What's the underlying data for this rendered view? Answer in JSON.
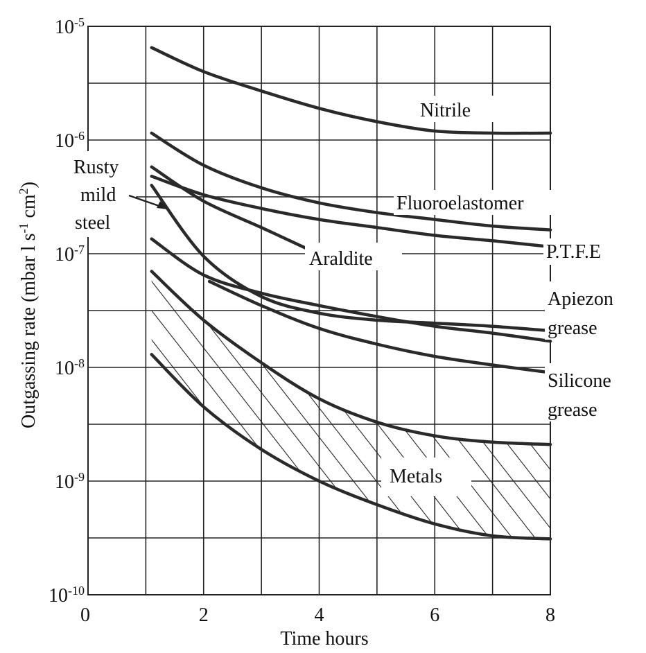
{
  "chart_data": {
    "type": "line",
    "title": "",
    "xlabel": "Time hours",
    "ylabel": "Outgassing rate (mbar l s",
    "ylabel_sup1": "-1",
    "ylabel_mid": " cm",
    "ylabel_sup2": "2",
    "ylabel_end": ")",
    "xlim": [
      0,
      8
    ],
    "ylim": [
      1e-10,
      1e-05
    ],
    "yscale": "log",
    "grid": true,
    "x_ticks": [
      {
        "value": 0,
        "label": "0"
      },
      {
        "value": 2,
        "label": "2"
      },
      {
        "value": 4,
        "label": "4"
      },
      {
        "value": 6,
        "label": "6"
      },
      {
        "value": 8,
        "label": "8"
      }
    ],
    "y_ticks": [
      {
        "value": 1e-05,
        "base": "10",
        "exp": "-5"
      },
      {
        "value": 1e-06,
        "base": "10",
        "exp": "-6"
      },
      {
        "value": 1e-07,
        "base": "10",
        "exp": "-7"
      },
      {
        "value": 1e-08,
        "base": "10",
        "exp": "-8"
      },
      {
        "value": 1e-09,
        "base": "10",
        "exp": "-9"
      },
      {
        "value": 1e-10,
        "base": "10",
        "exp": "-10"
      }
    ],
    "series": [
      {
        "name": "Nitrile",
        "x": [
          1.1,
          2,
          3,
          4,
          5,
          6,
          7,
          8
        ],
        "y": [
          6.5e-06,
          4e-06,
          2.7e-06,
          1.9e-06,
          1.45e-06,
          1.2e-06,
          1.15e-06,
          1.15e-06
        ]
      },
      {
        "name": "Fluoroelastomer",
        "x": [
          1.1,
          2,
          3,
          4,
          5,
          6,
          7,
          8
        ],
        "y": [
          1.15e-06,
          6e-07,
          3.8e-07,
          2.8e-07,
          2.3e-07,
          2e-07,
          1.75e-07,
          1.62e-07
        ]
      },
      {
        "name": "P.T.F.E",
        "x": [
          1.1,
          2,
          3,
          4,
          5,
          6,
          7,
          8
        ],
        "y": [
          4.8e-07,
          3.3e-07,
          2.5e-07,
          2e-07,
          1.7e-07,
          1.45e-07,
          1.3e-07,
          1.15e-07
        ]
      },
      {
        "name": "Araldite",
        "x": [
          1.1,
          2,
          3,
          3.8
        ],
        "y": [
          5.8e-07,
          2.9e-07,
          1.7e-07,
          1.1e-07
        ]
      },
      {
        "name": "Rusty mild steel",
        "x": [
          1.1,
          2,
          3,
          4,
          5,
          6,
          7,
          8
        ],
        "y": [
          4e-07,
          9.5e-08,
          4.2e-08,
          3e-08,
          2.6e-08,
          2.45e-08,
          2.3e-08,
          2.1e-08
        ]
      },
      {
        "name": "Apiezon grease",
        "x": [
          1.1,
          2,
          3,
          4,
          5,
          6,
          7,
          8
        ],
        "y": [
          1.35e-07,
          6.5e-08,
          4.5e-08,
          3.5e-08,
          2.8e-08,
          2.3e-08,
          2e-08,
          1.7e-08
        ]
      },
      {
        "name": "Silicone grease",
        "x": [
          2.1,
          3,
          4,
          5,
          6,
          7,
          8
        ],
        "y": [
          5.7e-08,
          3.5e-08,
          2.2e-08,
          1.6e-08,
          1.25e-08,
          1.05e-08,
          9e-09
        ]
      },
      {
        "name": "Metals upper",
        "x": [
          1.1,
          2,
          3,
          4,
          5,
          6,
          7,
          8
        ],
        "y": [
          7e-08,
          2.6e-08,
          1.1e-08,
          5.3e-09,
          3.3e-09,
          2.5e-09,
          2.2e-09,
          2.1e-09
        ]
      },
      {
        "name": "Metals lower",
        "x": [
          1.1,
          2,
          3,
          4,
          5,
          6,
          7,
          8
        ],
        "y": [
          1.3e-08,
          4.5e-09,
          1.9e-09,
          1e-09,
          6.2e-10,
          4.2e-10,
          3.3e-10,
          3.1e-10
        ]
      }
    ],
    "annotations": {
      "nitrile": "Nitrile",
      "fluoro": "Fluoroelastomer",
      "ptfe": "P.T.F.E",
      "araldite": "Araldite",
      "rusty1": "Rusty",
      "rusty2": "mild",
      "rusty3": "steel",
      "apiezon1": "Apiezon",
      "apiezon2": "grease",
      "silicone1": "Silicone",
      "silicone2": "grease",
      "metals": "Metals"
    }
  }
}
